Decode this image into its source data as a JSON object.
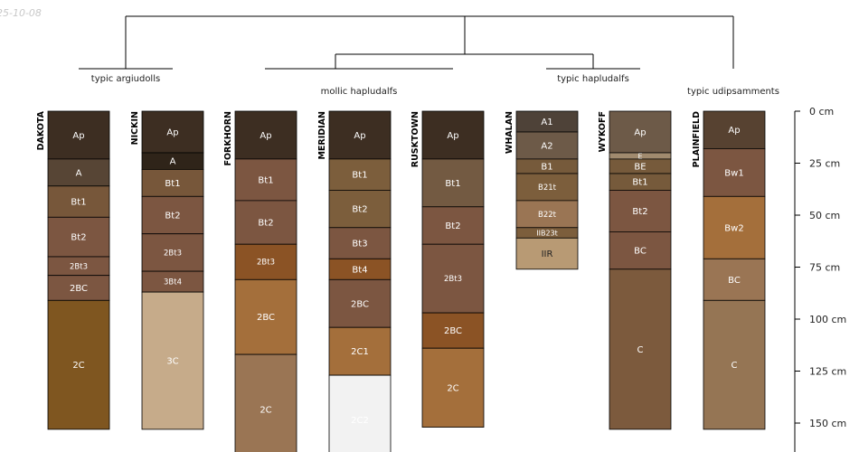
{
  "date_label": "25-10-08",
  "groups": [
    {
      "label": "typic argiudolls"
    },
    {
      "label": "mollic hapludalfs"
    },
    {
      "label": "typic hapludalfs"
    },
    {
      "label": "typic udipsamments"
    }
  ],
  "depth_axis": {
    "unit": "cm",
    "ticks": [
      {
        "depth": 0,
        "label": "0 cm"
      },
      {
        "depth": 25,
        "label": "25 cm"
      },
      {
        "depth": 50,
        "label": "50 cm"
      },
      {
        "depth": 75,
        "label": "75 cm"
      },
      {
        "depth": 100,
        "label": "100 cm"
      },
      {
        "depth": 125,
        "label": "125 cm"
      },
      {
        "depth": 150,
        "label": "150 cm"
      }
    ]
  },
  "profiles": [
    {
      "name": "DAKOTA",
      "horizons": [
        {
          "name": "Ap",
          "top": 0,
          "bottom": 23,
          "color": "#3d2e22"
        },
        {
          "name": "A",
          "top": 23,
          "bottom": 36,
          "color": "#574535"
        },
        {
          "name": "Bt1",
          "top": 36,
          "bottom": 51,
          "color": "#77573a"
        },
        {
          "name": "Bt2",
          "top": 51,
          "bottom": 70,
          "color": "#7c5641"
        },
        {
          "name": "2Bt3",
          "top": 70,
          "bottom": 79,
          "color": "#7c5641"
        },
        {
          "name": "2BC",
          "top": 79,
          "bottom": 91,
          "color": "#7c5641"
        },
        {
          "name": "2C",
          "top": 91,
          "bottom": 153,
          "color": "#7f5620"
        }
      ]
    },
    {
      "name": "NICKIN",
      "horizons": [
        {
          "name": "Ap",
          "top": 0,
          "bottom": 20,
          "color": "#3d2e22"
        },
        {
          "name": "A",
          "top": 20,
          "bottom": 28,
          "color": "#2f2419"
        },
        {
          "name": "Bt1",
          "top": 28,
          "bottom": 41,
          "color": "#77573a"
        },
        {
          "name": "Bt2",
          "top": 41,
          "bottom": 59,
          "color": "#7c5641"
        },
        {
          "name": "2Bt3",
          "top": 59,
          "bottom": 77,
          "color": "#7c5641"
        },
        {
          "name": "3Bt4",
          "top": 77,
          "bottom": 87,
          "color": "#7c5641"
        },
        {
          "name": "3C",
          "top": 87,
          "bottom": 153,
          "color": "#c6ab8a"
        }
      ]
    },
    {
      "name": "FORKHORN",
      "horizons": [
        {
          "name": "Ap",
          "top": 0,
          "bottom": 23,
          "color": "#3d2e22"
        },
        {
          "name": "Bt1",
          "top": 23,
          "bottom": 43,
          "color": "#7c5641"
        },
        {
          "name": "Bt2",
          "top": 43,
          "bottom": 64,
          "color": "#7c5641"
        },
        {
          "name": "2Bt3",
          "top": 64,
          "bottom": 81,
          "color": "#8b5325"
        },
        {
          "name": "2BC",
          "top": 81,
          "bottom": 117,
          "color": "#a46f3b"
        },
        {
          "name": "2C",
          "top": 117,
          "bottom": 170,
          "color": "#9a7554"
        }
      ]
    },
    {
      "name": "MERIDIAN",
      "horizons": [
        {
          "name": "Ap",
          "top": 0,
          "bottom": 23,
          "color": "#3d2e22"
        },
        {
          "name": "Bt1",
          "top": 23,
          "bottom": 38,
          "color": "#7c5e3c"
        },
        {
          "name": "Bt2",
          "top": 38,
          "bottom": 56,
          "color": "#7c5e3c"
        },
        {
          "name": "Bt3",
          "top": 56,
          "bottom": 71,
          "color": "#7c5641"
        },
        {
          "name": "Bt4",
          "top": 71,
          "bottom": 81,
          "color": "#8b5325"
        },
        {
          "name": "2BC",
          "top": 81,
          "bottom": 104,
          "color": "#7c5641"
        },
        {
          "name": "2C1",
          "top": 104,
          "bottom": 127,
          "color": "#a46f3b"
        },
        {
          "name": "2C2",
          "top": 127,
          "bottom": 170,
          "color": "#f2f2f2"
        }
      ]
    },
    {
      "name": "RUSKTOWN",
      "horizons": [
        {
          "name": "Ap",
          "top": 0,
          "bottom": 23,
          "color": "#3d2e22"
        },
        {
          "name": "Bt1",
          "top": 23,
          "bottom": 46,
          "color": "#735a42"
        },
        {
          "name": "Bt2",
          "top": 46,
          "bottom": 64,
          "color": "#7c5641"
        },
        {
          "name": "2Bt3",
          "top": 64,
          "bottom": 97,
          "color": "#7c5641"
        },
        {
          "name": "2BC",
          "top": 97,
          "bottom": 114,
          "color": "#8b5325"
        },
        {
          "name": "2C",
          "top": 114,
          "bottom": 152,
          "color": "#a46f3b"
        }
      ]
    },
    {
      "name": "WHALAN",
      "horizons": [
        {
          "name": "A1",
          "top": 0,
          "bottom": 10,
          "color": "#4e4238"
        },
        {
          "name": "A2",
          "top": 10,
          "bottom": 23,
          "color": "#6d5a48"
        },
        {
          "name": "B1",
          "top": 23,
          "bottom": 30,
          "color": "#765a3b"
        },
        {
          "name": "B21t",
          "top": 30,
          "bottom": 43,
          "color": "#7c5e3c"
        },
        {
          "name": "B22t",
          "top": 43,
          "bottom": 56,
          "color": "#9a7554"
        },
        {
          "name": "IIB23t",
          "top": 56,
          "bottom": 61,
          "color": "#7c5e3c"
        },
        {
          "name": "IIR",
          "top": 61,
          "bottom": 76,
          "color": "#b89a74",
          "dark": true
        }
      ]
    },
    {
      "name": "WYKOFF",
      "horizons": [
        {
          "name": "Ap",
          "top": 0,
          "bottom": 20,
          "color": "#6d5a48"
        },
        {
          "name": "E",
          "top": 20,
          "bottom": 23,
          "color": "#a08a6e"
        },
        {
          "name": "BE",
          "top": 23,
          "bottom": 30,
          "color": "#765a3b"
        },
        {
          "name": "Bt1",
          "top": 30,
          "bottom": 38,
          "color": "#765a3b"
        },
        {
          "name": "Bt2",
          "top": 38,
          "bottom": 58,
          "color": "#7c5641"
        },
        {
          "name": "BC",
          "top": 58,
          "bottom": 76,
          "color": "#7c5641"
        },
        {
          "name": "C",
          "top": 76,
          "bottom": 153,
          "color": "#7c5a3d"
        }
      ]
    },
    {
      "name": "PLAINFIELD",
      "horizons": [
        {
          "name": "Ap",
          "top": 0,
          "bottom": 18,
          "color": "#574231"
        },
        {
          "name": "Bw1",
          "top": 18,
          "bottom": 41,
          "color": "#7c5641"
        },
        {
          "name": "Bw2",
          "top": 41,
          "bottom": 71,
          "color": "#a46f3b"
        },
        {
          "name": "BC",
          "top": 71,
          "bottom": 91,
          "color": "#9a7554"
        },
        {
          "name": "C",
          "top": 91,
          "bottom": 153,
          "color": "#957554"
        }
      ]
    }
  ]
}
